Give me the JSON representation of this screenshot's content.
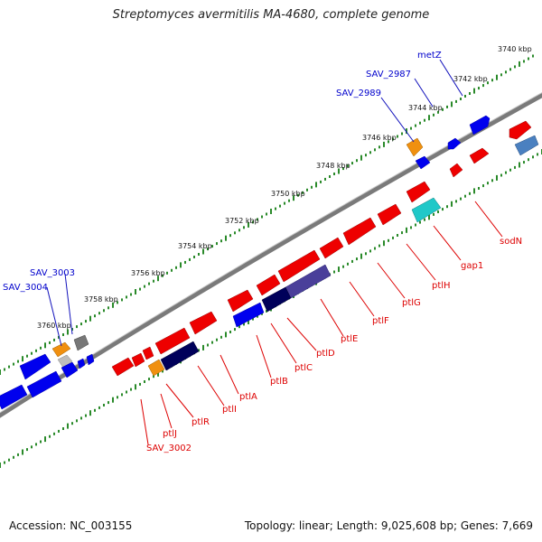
{
  "title": "Streptomyces avermitilis MA-4680, complete genome",
  "footer": {
    "accession": "Accession: NC_003155",
    "summary": "Topology: linear; Length: 9,025,608 bp; Genes: 7,669"
  },
  "colors": {
    "backbone": "#7a7a7a",
    "tick": "#2a8a2a",
    "label_blue": "#0000cc",
    "label_red": "#dd0000",
    "gene_red": "#ee0000",
    "gene_blue": "#0000ee",
    "gene_navy": "#00005a",
    "gene_slate": "#4a3f9a",
    "gene_orange": "#f09010",
    "gene_cyan": "#20c8c8",
    "gene_steel": "#4a80c0",
    "gene_gray": "#777777"
  },
  "scale_labels": [
    "3740 kbp",
    "3742 kbp",
    "3744 kbp",
    "3746 kbp",
    "3748 kbp",
    "3750 kbp",
    "3752 kbp",
    "3754 kbp",
    "3756 kbp",
    "3758 kbp",
    "3760 kbp"
  ],
  "upper_labels": [
    "metZ",
    "SAV_2987",
    "SAV_2989",
    "SAV_3003",
    "SAV_3004"
  ],
  "lower_labels": [
    "sodN",
    "gap1",
    "ptlH",
    "ptlG",
    "ptlF",
    "ptlE",
    "ptlD",
    "ptlC",
    "ptlB",
    "ptlA",
    "ptlI",
    "ptlR",
    "ptlJ",
    "SAV_3002"
  ]
}
